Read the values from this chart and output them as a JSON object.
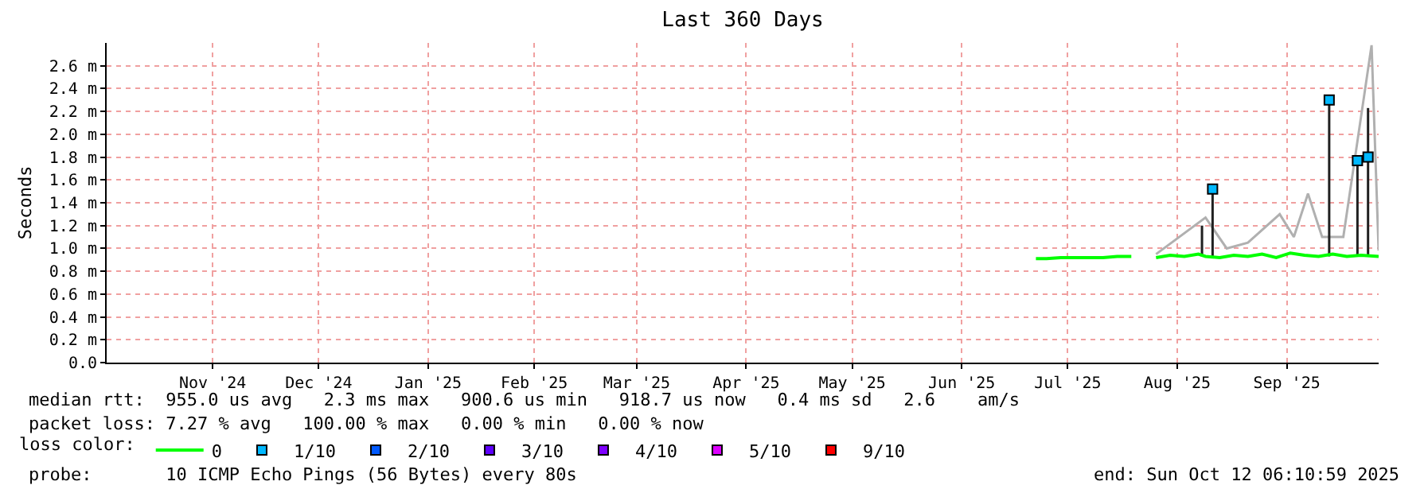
{
  "chart_data": {
    "type": "line",
    "title": "Last 360 Days",
    "ylabel": "Seconds",
    "legend_title": "loss color:",
    "xlim": [
      "2024-10-17",
      "2025-10-12"
    ],
    "xticks": [
      {
        "value": "2024-11-16",
        "label": "Nov '24"
      },
      {
        "value": "2024-12-16",
        "label": "Dec '24"
      },
      {
        "value": "2025-01-16",
        "label": "Jan '25"
      },
      {
        "value": "2025-02-15",
        "label": "Feb '25"
      },
      {
        "value": "2025-03-16",
        "label": "Mar '25"
      },
      {
        "value": "2025-04-16",
        "label": "Apr '25"
      },
      {
        "value": "2025-05-16",
        "label": "May '25"
      },
      {
        "value": "2025-06-16",
        "label": "Jun '25"
      },
      {
        "value": "2025-07-16",
        "label": "Jul '25"
      },
      {
        "value": "2025-08-16",
        "label": "Aug '25"
      },
      {
        "value": "2025-09-16",
        "label": "Sep '25"
      }
    ],
    "ylim": [
      0,
      2.8
    ],
    "yticks": [
      {
        "value": 0,
        "label": "0.0"
      },
      {
        "value": 0.2,
        "label": "0.2 m"
      },
      {
        "value": 0.4,
        "label": "0.4 m"
      },
      {
        "value": 0.6,
        "label": "0.6 m"
      },
      {
        "value": 0.8,
        "label": "0.8 m"
      },
      {
        "value": 1.0,
        "label": "1.0 m"
      },
      {
        "value": 1.2,
        "label": "1.2 m"
      },
      {
        "value": 1.4,
        "label": "1.4 m"
      },
      {
        "value": 1.6,
        "label": "1.6 m"
      },
      {
        "value": 1.8,
        "label": "1.8 m"
      },
      {
        "value": 2.0,
        "label": "2.0 m"
      },
      {
        "value": 2.2,
        "label": "2.2 m"
      },
      {
        "value": 2.4,
        "label": "2.4 m"
      },
      {
        "value": 2.6,
        "label": "2.6 m"
      }
    ],
    "grid": true,
    "legend": "bottom left",
    "series": [
      {
        "color": "#b0b0b0",
        "x": [
          "2025-08-10",
          "2025-08-24",
          "2025-08-30",
          "2025-09-05",
          "2025-09-14",
          "2025-09-18",
          "2025-09-22",
          "2025-09-26",
          "2025-10-02",
          "2025-10-10",
          "2025-10-12"
        ],
        "values": [
          0.95,
          1.27,
          1.0,
          1.05,
          1.3,
          1.1,
          1.48,
          1.1,
          1.1,
          2.78,
          0.98
        ]
      },
      {
        "color": "#202020",
        "x": [
          "2025-08-23",
          "2025-08-23",
          "2025-08-24",
          "2025-08-26",
          "2025-08-26",
          "2025-08-27",
          "2025-09-28",
          "2025-09-28",
          "2025-09-29",
          "2025-10-06",
          "2025-10-06",
          "2025-10-07",
          "2025-10-09",
          "2025-10-09"
        ],
        "values": [
          0.93,
          1.2,
          null,
          0.93,
          1.52,
          null,
          0.93,
          2.3,
          null,
          0.93,
          1.77,
          null,
          0.93,
          2.23
        ]
      },
      {
        "name": "0",
        "color": "#00ff00",
        "x": [
          "2025-07-07",
          "2025-07-10",
          "2025-07-14",
          "2025-07-18",
          "2025-07-22",
          "2025-07-26",
          "2025-07-30",
          "2025-08-03",
          "2025-08-06",
          "2025-08-10",
          "2025-08-14",
          "2025-08-18",
          "2025-08-22",
          "2025-08-24",
          "2025-08-28",
          "2025-09-01",
          "2025-09-05",
          "2025-09-09",
          "2025-09-13",
          "2025-09-17",
          "2025-09-21",
          "2025-09-25",
          "2025-09-29",
          "2025-10-03",
          "2025-10-07",
          "2025-10-12"
        ],
        "values": [
          0.91,
          0.91,
          0.92,
          0.92,
          0.92,
          0.92,
          0.93,
          0.93,
          null,
          0.92,
          0.94,
          0.93,
          0.95,
          0.93,
          0.92,
          0.94,
          0.93,
          0.95,
          0.92,
          0.96,
          0.94,
          0.93,
          0.95,
          0.93,
          0.94,
          0.93
        ]
      },
      {
        "type": "scatter",
        "marker": "square",
        "name": "1/10",
        "color": "#00b8ff",
        "x": [
          "2025-08-26",
          "2025-09-28",
          "2025-10-06",
          "2025-10-09"
        ],
        "values": [
          1.52,
          2.3,
          1.77,
          1.8
        ]
      },
      {
        "type": "scatter",
        "marker": "square",
        "name": "2/10",
        "color": "#0059ff"
      },
      {
        "type": "scatter",
        "marker": "square",
        "name": "3/10",
        "color": "#5e00ff"
      },
      {
        "type": "scatter",
        "marker": "square",
        "name": "4/10",
        "color": "#7e00ff"
      },
      {
        "type": "scatter",
        "marker": "square",
        "name": "5/10",
        "color": "#dd00ff"
      },
      {
        "type": "scatter",
        "marker": "square",
        "name": "9/10",
        "color": "#ff0000"
      }
    ],
    "annotations": [
      "median rtt:  955.0 us avg   2.3 ms max   900.6 us min   918.7 us now   0.4 ms sd   2.6    am/s",
      "packet loss: 7.27 % avg   100.00 % max   0.00 % min   0.00 % now",
      "probe:       10 ICMP Echo Pings (56 Bytes) every 80s",
      "end: Sun Oct 12 06:10:59 2025"
    ]
  }
}
